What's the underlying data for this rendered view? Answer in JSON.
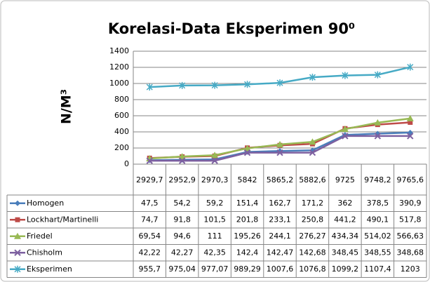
{
  "chart_data": {
    "type": "line",
    "title": "Korelasi-Data Eksperimen 90⁰",
    "y_label": "N/M³",
    "categories": [
      "2929,7",
      "2952,9",
      "2970,3",
      "5842",
      "5865,2",
      "5882,6",
      "9725",
      "9748,2",
      "9765,6"
    ],
    "ylim": [
      0,
      1400
    ],
    "yticks": [
      0,
      200,
      400,
      600,
      800,
      1000,
      1200,
      1400
    ],
    "series": [
      {
        "name": "Homogen",
        "color": "#4a7ebb",
        "marker": "diamond",
        "values": [
          47.5,
          54.2,
          59.2,
          151.4,
          162.7,
          171.2,
          362,
          378.5,
          390.9
        ],
        "value_labels": [
          "47,5",
          "54,2",
          "59,2",
          "151,4",
          "162,7",
          "171,2",
          "362",
          "378,5",
          "390,9"
        ]
      },
      {
        "name": "Lockhart/Martinelli",
        "color": "#be4b48",
        "marker": "square",
        "values": [
          74.7,
          91.8,
          101.5,
          201.8,
          233.1,
          250.8,
          441.2,
          490.1,
          517.8
        ],
        "value_labels": [
          "74,7",
          "91,8",
          "101,5",
          "201,8",
          "233,1",
          "250,8",
          "441,2",
          "490,1",
          "517,8"
        ]
      },
      {
        "name": "Friedel",
        "color": "#98b954",
        "marker": "triangle",
        "values": [
          69.54,
          94.6,
          111,
          195.26,
          244.1,
          276.27,
          434.34,
          514.02,
          566.63
        ],
        "value_labels": [
          "69,54",
          "94,6",
          "111",
          "195,26",
          "244,1",
          "276,27",
          "434,34",
          "514,02",
          "566,63"
        ]
      },
      {
        "name": "Chisholm",
        "color": "#7d60a0",
        "marker": "x",
        "values": [
          42.22,
          42.27,
          42.35,
          142.4,
          142.47,
          142.68,
          348.45,
          348.55,
          348.68
        ],
        "value_labels": [
          "42,22",
          "42,27",
          "42,35",
          "142,4",
          "142,47",
          "142,68",
          "348,45",
          "348,55",
          "348,68"
        ]
      },
      {
        "name": "Eksperimen",
        "color": "#46aac5",
        "marker": "star",
        "values": [
          955.7,
          975.04,
          977.07,
          989.29,
          1007.6,
          1076.8,
          1099.2,
          1107.4,
          1203
        ],
        "value_labels": [
          "955,7",
          "975,04",
          "977,07",
          "989,29",
          "1007,6",
          "1076,8",
          "1099,2",
          "1107,4",
          "1203"
        ]
      }
    ]
  }
}
